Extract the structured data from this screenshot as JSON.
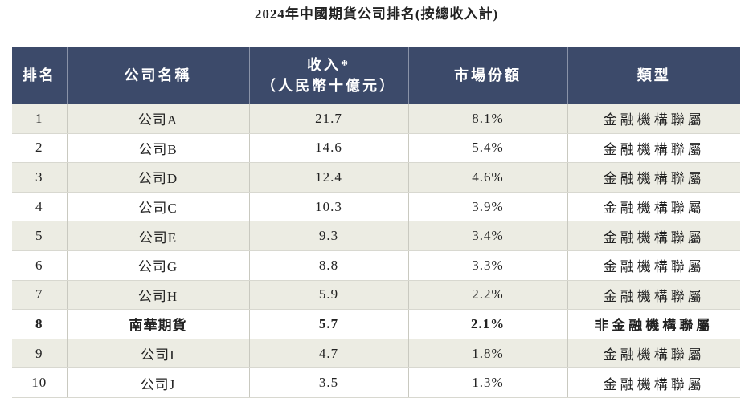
{
  "header": {
    "title": "2024年中國期貨公司排名(按總收入計)"
  },
  "table": {
    "columns": [
      [
        "排名"
      ],
      [
        "公司名稱"
      ],
      [
        "收入*",
        "（人民幣十億元）"
      ],
      [
        "市場份額"
      ],
      [
        "類型"
      ]
    ],
    "rows": [
      {
        "cells": [
          "1",
          "公司A",
          "21.7",
          "8.1%",
          "金融機構聯屬"
        ]
      },
      {
        "cells": [
          "2",
          "公司B",
          "14.6",
          "5.4%",
          "金融機構聯屬"
        ]
      },
      {
        "cells": [
          "3",
          "公司D",
          "12.4",
          "4.6%",
          "金融機構聯屬"
        ]
      },
      {
        "cells": [
          "4",
          "公司C",
          "10.3",
          "3.9%",
          "金融機構聯屬"
        ]
      },
      {
        "cells": [
          "5",
          "公司E",
          "9.3",
          "3.4%",
          "金融機構聯屬"
        ]
      },
      {
        "cells": [
          "6",
          "公司G",
          "8.8",
          "3.3%",
          "金融機構聯屬"
        ]
      },
      {
        "cells": [
          "7",
          "公司H",
          "5.9",
          "2.2%",
          "金融機構聯屬"
        ]
      },
      {
        "cells": [
          "8",
          "南華期貨",
          "5.7",
          "2.1%",
          "非金融機構聯屬"
        ],
        "bold": true
      },
      {
        "cells": [
          "9",
          "公司I",
          "4.7",
          "1.8%",
          "金融機構聯屬"
        ]
      },
      {
        "cells": [
          "10",
          "公司J",
          "3.5",
          "1.3%",
          "金融機構聯屬"
        ]
      }
    ]
  }
}
